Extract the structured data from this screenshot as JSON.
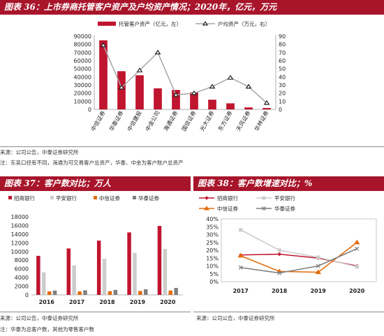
{
  "colors": {
    "header": "#a8152b",
    "primary": "#c0152f",
    "grey": "#a6a6a6",
    "light_grey": "#cccccc",
    "dark_grey": "#7f7f7f",
    "orange": "#e36c0a"
  },
  "fig36": {
    "title": "图表 36：上市券商托管客户资产及户均资产情况；2020年，亿元，万元",
    "source": "来源：公司公告，中泰证券研究所",
    "note": "注：东吴口径有不同，海通为可交易客户总资产，华泰、中金为客户账户总资产"
  },
  "fig37": {
    "title": "图表 37：客户数对比；万人",
    "source": "来源：公司公告，中泰证券研究所",
    "note": "注：华泰为总客户数，其他为零售客户数"
  },
  "fig38": {
    "title": "图表 38：客户数增速对比；%",
    "source": "来源：公司公告，中泰证券研究所"
  },
  "chart_data": [
    {
      "type": "bar",
      "categories": [
        "中信证券",
        "华泰证券",
        "中信建投",
        "中金公司",
        "海通证券",
        "国信证券",
        "光大证券",
        "东方证券",
        "天风证券",
        "华林证券"
      ],
      "series": [
        {
          "name": "托管客户资产（亿元，左）",
          "type": "bar",
          "axis": "left",
          "values": [
            85000,
            47000,
            42000,
            26000,
            24000,
            21000,
            12000,
            7500,
            2500,
            1800
          ]
        },
        {
          "name": "户均资产（万元，右）",
          "type": "line",
          "axis": "right",
          "values": [
            79,
            27,
            48,
            70,
            18,
            20,
            28,
            39,
            28,
            8
          ]
        }
      ],
      "y_left": {
        "lim": [
          0,
          90000
        ],
        "ticks": [
          "0",
          "10000",
          "20000",
          "30000",
          "40000",
          "50000",
          "60000",
          "70000",
          "80000",
          "90000"
        ]
      },
      "y_right": {
        "lim": [
          0,
          90
        ],
        "ticks": [
          "0",
          "10",
          "20",
          "30",
          "40",
          "50",
          "60",
          "70",
          "80",
          "90"
        ]
      },
      "legend": "top"
    },
    {
      "type": "bar",
      "categories": [
        "2016",
        "2017",
        "2018",
        "2019",
        "2020"
      ],
      "series": [
        {
          "name": "招商银行",
          "values": [
            9000,
            10700,
            12500,
            14400,
            15900
          ]
        },
        {
          "name": "平安银行",
          "values": [
            5200,
            6800,
            8300,
            9700,
            10600
          ]
        },
        {
          "name": "中信证券",
          "values": [
            800,
            800,
            850,
            900,
            1000
          ]
        },
        {
          "name": "华泰证券",
          "values": [
            1000,
            1050,
            1150,
            1300,
            1600
          ]
        }
      ],
      "ylim": [
        0,
        18000
      ],
      "yticks": [
        "0",
        "2000",
        "4000",
        "6000",
        "8000",
        "10000",
        "12000",
        "14000",
        "16000",
        "18000"
      ],
      "legend": "top"
    },
    {
      "type": "line",
      "categories": [
        "2017",
        "2018",
        "2019",
        "2020"
      ],
      "series": [
        {
          "name": "招商银行",
          "values": [
            17.0,
            17.5,
            15.0,
            10.0
          ]
        },
        {
          "name": "平安银行",
          "values": [
            33.0,
            20.0,
            15.5,
            9.5
          ]
        },
        {
          "name": "中信证券",
          "values": [
            16.5,
            6.5,
            6.0,
            25.0
          ]
        },
        {
          "name": "华泰证券",
          "values": [
            9.0,
            5.5,
            10.0,
            21.0
          ]
        }
      ],
      "ylim": [
        0,
        40
      ],
      "yticks": [
        "0%",
        "5%",
        "10%",
        "15%",
        "20%",
        "25%",
        "30%",
        "35%",
        "40%"
      ],
      "legend": "top"
    }
  ]
}
